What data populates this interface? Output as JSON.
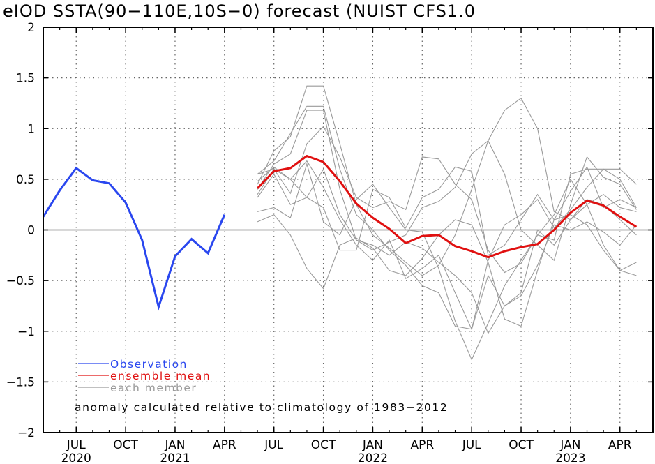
{
  "chart_data": {
    "type": "line",
    "title": "eIOD SSTA(90−110E,10S−0) forecast (NUIST CFS1.0",
    "xlabel": "",
    "ylabel": "",
    "ylim": [
      -2,
      2
    ],
    "yticks": [
      2,
      1.5,
      1,
      0.5,
      0,
      -0.5,
      -1,
      -1.5,
      -2
    ],
    "ytick_labels": [
      "2",
      "1.5",
      "1",
      "0.5",
      "0",
      "−0.5",
      "−1",
      "−1.5",
      "−2"
    ],
    "x_range_months": [
      "2020-05",
      "2023-06"
    ],
    "xticks": [
      {
        "month": "2020-07",
        "label": "JUL",
        "year": "2020"
      },
      {
        "month": "2020-10",
        "label": "OCT",
        "year": ""
      },
      {
        "month": "2021-01",
        "label": "JAN",
        "year": "2021"
      },
      {
        "month": "2021-04",
        "label": "APR",
        "year": ""
      },
      {
        "month": "2021-07",
        "label": "JUL",
        "year": ""
      },
      {
        "month": "2021-10",
        "label": "OCT",
        "year": ""
      },
      {
        "month": "2022-01",
        "label": "JAN",
        "year": "2022"
      },
      {
        "month": "2022-04",
        "label": "APR",
        "year": ""
      },
      {
        "month": "2022-07",
        "label": "JUL",
        "year": ""
      },
      {
        "month": "2022-10",
        "label": "OCT",
        "year": ""
      },
      {
        "month": "2023-01",
        "label": "JAN",
        "year": "2023"
      },
      {
        "month": "2023-04",
        "label": "APR",
        "year": ""
      }
    ],
    "grid": true,
    "zero_line": true,
    "colors": {
      "observation": "#2a47ef",
      "ensemble_mean": "#e01010",
      "member": "#9a9a9a",
      "zero": "#666666"
    },
    "legend": {
      "placement": "lower-left",
      "entries": [
        {
          "label": "Observation",
          "color": "#2a47ef"
        },
        {
          "label": "ensemble mean",
          "color": "#e01010"
        },
        {
          "label": "each member",
          "color": "#9a9a9a"
        }
      ]
    },
    "annotation": "anomaly calculated relative to climatology of 1983−2012",
    "observation": {
      "start": "2020-05",
      "values": [
        0.13,
        0.39,
        0.61,
        0.49,
        0.46,
        0.27,
        -0.1,
        -0.76,
        -0.26,
        -0.09,
        -0.23,
        0.15
      ]
    },
    "ensemble_mean": {
      "start": "2021-06",
      "values": [
        0.41,
        0.58,
        0.61,
        0.73,
        0.67,
        0.48,
        0.26,
        0.12,
        0.01,
        -0.13,
        -0.06,
        -0.05,
        -0.16,
        -0.21,
        -0.27,
        -0.21,
        -0.17,
        -0.14,
        0.0,
        0.17,
        0.29,
        0.24,
        0.13,
        0.03
      ]
    },
    "members": {
      "start": "2021-06",
      "series": [
        [
          0.45,
          0.78,
          0.92,
          1.42,
          1.42,
          0.85,
          0.25,
          -0.05,
          -0.18,
          -0.32,
          -0.45,
          -0.35,
          -0.05,
          0.4,
          0.88,
          1.18,
          1.3,
          1.0,
          0.18,
          0.1,
          0.3,
          0.25,
          0.1,
          -0.05
        ],
        [
          0.55,
          0.68,
          0.95,
          1.22,
          1.22,
          0.6,
          0.15,
          0.0,
          -0.2,
          -0.35,
          -0.55,
          -0.62,
          -0.95,
          -0.98,
          -0.3,
          0.05,
          0.15,
          0.3,
          0.02,
          0.2,
          0.42,
          0.6,
          0.6,
          0.45
        ],
        [
          0.4,
          0.65,
          0.75,
          1.18,
          1.18,
          0.4,
          -0.1,
          -0.2,
          -0.12,
          -0.05,
          0.22,
          0.28,
          0.42,
          0.75,
          0.88,
          0.55,
          0.0,
          -0.15,
          -0.3,
          0.25,
          0.72,
          0.52,
          0.45,
          0.2
        ],
        [
          0.55,
          0.6,
          0.36,
          0.85,
          1.02,
          0.72,
          0.32,
          0.22,
          0.28,
          0.2,
          0.72,
          0.7,
          0.45,
          0.3,
          -0.2,
          -0.42,
          -0.33,
          -0.05,
          -0.1,
          0.55,
          0.6,
          0.6,
          0.5,
          0.22
        ],
        [
          0.35,
          0.6,
          0.5,
          0.68,
          0.42,
          0.1,
          -0.15,
          -0.3,
          -0.1,
          -0.48,
          -0.38,
          -0.25,
          -0.62,
          -0.98,
          -0.45,
          -0.75,
          -0.62,
          0.0,
          -0.15,
          0.1,
          0.25,
          0.35,
          0.22,
          0.18
        ],
        [
          0.32,
          0.55,
          0.25,
          0.32,
          0.22,
          -0.2,
          -0.2,
          0.4,
          0.32,
          0.02,
          0.32,
          0.4,
          0.62,
          0.58,
          -0.25,
          -0.15,
          0.1,
          0.35,
          0.1,
          0.38,
          0.62,
          0.22,
          0.3,
          0.22
        ],
        [
          0.18,
          0.22,
          0.12,
          0.65,
          0.08,
          -0.05,
          0.3,
          0.45,
          0.22,
          0.0,
          -0.02,
          -0.38,
          -0.9,
          -1.28,
          -0.92,
          -0.55,
          -0.3,
          -0.05,
          0.15,
          0.5,
          0.25,
          -0.15,
          -0.4,
          -0.32
        ],
        [
          0.08,
          0.15,
          -0.05,
          -0.38,
          -0.58,
          -0.15,
          -0.08,
          -0.18,
          -0.4,
          -0.45,
          -0.28,
          -0.05,
          0.1,
          0.05,
          -0.32,
          -0.88,
          -0.95,
          -0.4,
          0.1,
          0.15,
          0.05,
          -0.2,
          -0.4,
          -0.45
        ],
        [
          0.48,
          0.62,
          0.5,
          0.32,
          0.6,
          0.15,
          -0.1,
          -0.15,
          -0.25,
          -0.12,
          -0.18,
          -0.32,
          -0.45,
          -0.62,
          -1.02,
          -0.75,
          -0.65,
          -0.35,
          0.05,
          0.0,
          0.08,
          -0.02,
          -0.15,
          0.05
        ]
      ]
    }
  }
}
